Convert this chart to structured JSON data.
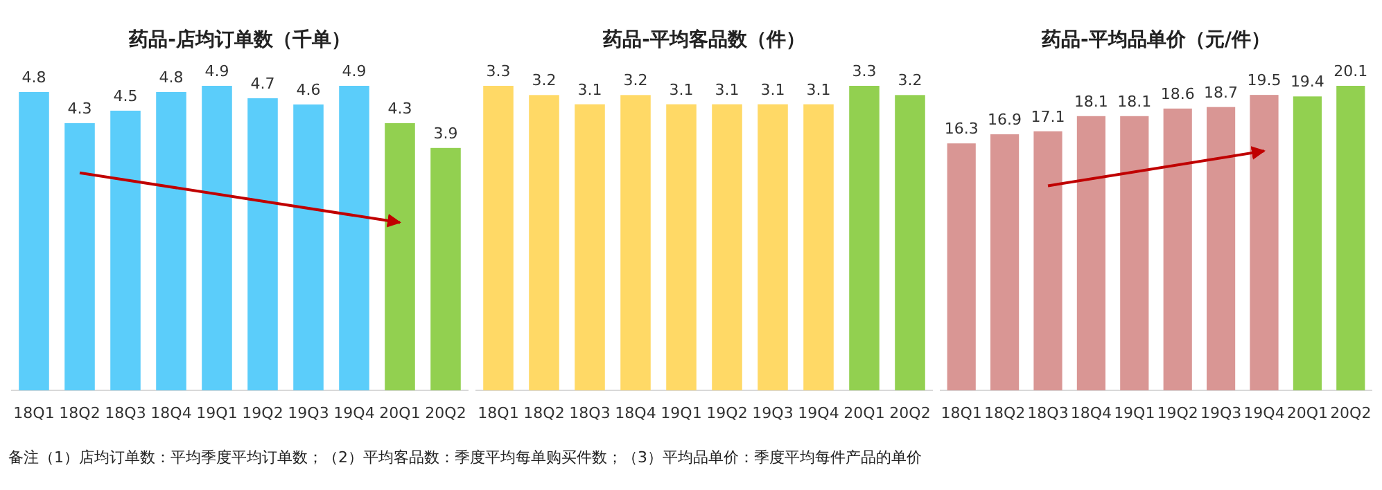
{
  "chart_data": [
    {
      "type": "bar",
      "title": "药品-店均订单数（千单）",
      "categories": [
        "18Q1",
        "18Q2",
        "18Q3",
        "18Q4",
        "19Q1",
        "19Q2",
        "19Q3",
        "19Q4",
        "20Q1",
        "20Q2"
      ],
      "series": [
        {
          "values": [
            4.8,
            4.3,
            4.5,
            4.8,
            4.9,
            4.7,
            4.6,
            4.9,
            4.3,
            3.9
          ],
          "value_labels": [
            "4.8",
            "4.3",
            "4.5",
            "4.8",
            "4.9",
            "4.7",
            "4.6",
            "4.9",
            "4.3",
            "3.9"
          ],
          "colors": [
            "#5bcdfa",
            "#5bcdfa",
            "#5bcdfa",
            "#5bcdfa",
            "#5bcdfa",
            "#5bcdfa",
            "#5bcdfa",
            "#5bcdfa",
            "#92d050",
            "#92d050"
          ]
        },
        {
          "type": "line",
          "x": [
            "18Q2",
            "20Q1"
          ],
          "values": [
            3.5,
            2.7
          ],
          "color": "#c00000"
        }
      ],
      "grid": false,
      "tick_labels": "x",
      "annotations": [
        "备注（1）店均订单数：平均季度平均订单数；（2）平均客品数：季度平均每单购买件数；（3）平均品单价：季度平均每件产品的单价"
      ]
    },
    {
      "type": "bar",
      "title": "药品-平均客品数（件）",
      "categories": [
        "18Q1",
        "18Q2",
        "18Q3",
        "18Q4",
        "19Q1",
        "19Q2",
        "19Q3",
        "19Q4",
        "20Q1",
        "20Q2"
      ],
      "series": [
        {
          "values": [
            3.3,
            3.2,
            3.1,
            3.2,
            3.1,
            3.1,
            3.1,
            3.1,
            3.3,
            3.2
          ],
          "value_labels": [
            "3.3",
            "3.2",
            "3.1",
            "3.2",
            "3.1",
            "3.1",
            "3.1",
            "3.1",
            "3.3",
            "3.2"
          ],
          "colors": [
            "#ffd966",
            "#ffd966",
            "#ffd966",
            "#ffd966",
            "#ffd966",
            "#ffd966",
            "#ffd966",
            "#ffd966",
            "#92d050",
            "#92d050"
          ]
        }
      ],
      "grid": false,
      "tick_labels": "x"
    },
    {
      "type": "bar",
      "title": "药品-平均品单价（元/件）",
      "categories": [
        "18Q1",
        "18Q2",
        "18Q3",
        "18Q4",
        "19Q1",
        "19Q2",
        "19Q3",
        "19Q4",
        "20Q1",
        "20Q2"
      ],
      "series": [
        {
          "values": [
            16.3,
            16.9,
            17.1,
            18.1,
            18.1,
            18.6,
            18.7,
            19.5,
            19.4,
            20.1
          ],
          "value_labels": [
            "16.3",
            "16.9",
            "17.1",
            "18.1",
            "18.1",
            "18.6",
            "18.7",
            "19.5",
            "19.4",
            "20.1"
          ],
          "colors": [
            "#d99694",
            "#d99694",
            "#d99694",
            "#d99694",
            "#d99694",
            "#d99694",
            "#d99694",
            "#d99694",
            "#92d050",
            "#92d050"
          ]
        },
        {
          "type": "line",
          "x": [
            "18Q3",
            "19Q4"
          ],
          "values": [
            13.5,
            15.8
          ],
          "color": "#c00000"
        }
      ],
      "grid": false,
      "tick_labels": "x"
    }
  ]
}
